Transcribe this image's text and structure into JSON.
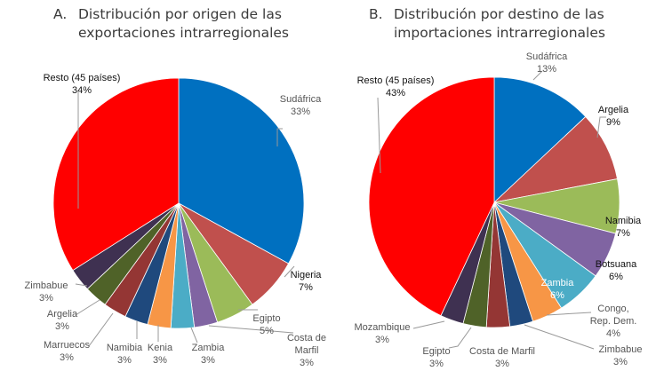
{
  "chart_data": [
    {
      "type": "pie",
      "panel": "A.",
      "title": "Distribución por origen de las exportaciones intrarregionales",
      "title_lines": [
        "Distribución por origen de las",
        "exportaciones intrarregionales"
      ],
      "slices": [
        {
          "label": "Sudáfrica",
          "value": 33,
          "display": "33%",
          "color": "#0070C0"
        },
        {
          "label": "Nigeria",
          "value": 7,
          "display": "7%",
          "color": "#C0504D"
        },
        {
          "label": "Egipto",
          "value": 5,
          "display": "5%",
          "color": "#9BBB59"
        },
        {
          "label": "Costa de Marfil",
          "value": 3,
          "display": "3%",
          "color": "#8064A2"
        },
        {
          "label": "Zambia",
          "value": 3,
          "display": "3%",
          "color": "#4BACC6"
        },
        {
          "label": "Kenia",
          "value": 3,
          "display": "3%",
          "color": "#F79646"
        },
        {
          "label": "Namibia",
          "value": 3,
          "display": "3%",
          "color": "#1F497D"
        },
        {
          "label": "Marruecos",
          "value": 3,
          "display": "3%",
          "color": "#943634"
        },
        {
          "label": "Argelia",
          "value": 3,
          "display": "3%",
          "color": "#4F6228"
        },
        {
          "label": "Zimbabue",
          "value": 3,
          "display": "3%",
          "color": "#3F3151"
        },
        {
          "label": "Resto (45 países)",
          "value": 34,
          "display": "34%",
          "color": "#FF0000"
        }
      ]
    },
    {
      "type": "pie",
      "panel": "B.",
      "title": "Distribución por destino de las importaciones intrarregionales",
      "title_lines": [
        "Distribución por destino de las",
        "importaciones intrarregionales"
      ],
      "slices": [
        {
          "label": "Sudáfrica",
          "value": 13,
          "display": "13%",
          "color": "#0070C0"
        },
        {
          "label": "Argelia",
          "value": 9,
          "display": "9%",
          "color": "#C0504D"
        },
        {
          "label": "Namibia",
          "value": 7,
          "display": "7%",
          "color": "#9BBB59"
        },
        {
          "label": "Botsuana",
          "value": 6,
          "display": "6%",
          "color": "#8064A2"
        },
        {
          "label": "Zambia",
          "value": 6,
          "display": "6%",
          "color": "#4BACC6"
        },
        {
          "label": "Congo, Rep. Dem.",
          "value": 4,
          "display": "4%",
          "color": "#F79646"
        },
        {
          "label": "Zimbabue",
          "value": 3,
          "display": "3%",
          "color": "#1F497D"
        },
        {
          "label": "Costa de Marfil",
          "value": 3,
          "display": "3%",
          "color": "#943634"
        },
        {
          "label": "Egipto",
          "value": 3,
          "display": "3%",
          "color": "#4F6228"
        },
        {
          "label": "Mozambique",
          "value": 3,
          "display": "3%",
          "color": "#3F3151"
        },
        {
          "label": "Resto (45 países)",
          "value": 43,
          "display": "43%",
          "color": "#FF0000"
        }
      ]
    }
  ]
}
